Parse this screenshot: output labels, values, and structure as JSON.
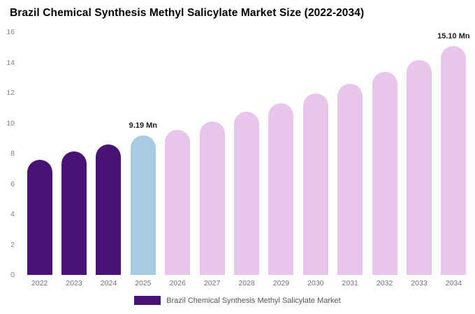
{
  "chart_data": {
    "type": "bar",
    "title": "Brazil Chemical Synthesis Methyl Salicylate Market Size (2022-2034)",
    "xlabel": "",
    "ylabel": "",
    "ylim": [
      0,
      16
    ],
    "yticks": [
      0,
      2,
      4,
      6,
      8,
      10,
      12,
      14,
      16
    ],
    "grid": false,
    "categories": [
      "2022",
      "2023",
      "2024",
      "2025",
      "2026",
      "2027",
      "2028",
      "2029",
      "2030",
      "2031",
      "2032",
      "2033",
      "2034"
    ],
    "values": [
      7.6,
      8.15,
      8.6,
      9.19,
      9.56,
      10.1,
      10.75,
      11.3,
      11.95,
      12.6,
      13.4,
      14.15,
      15.1
    ],
    "data_labels": [
      null,
      null,
      null,
      "9.19 Mn",
      null,
      null,
      null,
      null,
      null,
      null,
      null,
      null,
      "15.10 Mn"
    ],
    "bar_colors": [
      "#4a1277",
      "#4a1277",
      "#4a1277",
      "#a7cbe3",
      "#e8c5eb",
      "#e8c5eb",
      "#e8c5eb",
      "#e8c5eb",
      "#e8c5eb",
      "#e8c5eb",
      "#e8c5eb",
      "#e8c5eb",
      "#e8c5eb"
    ],
    "colors": {
      "historical": "#4a1277",
      "base_year": "#a7cbe3",
      "forecast": "#e8c5eb"
    },
    "legend": [
      {
        "label": "Brazil Chemical Synthesis Methyl Salicylate Market",
        "color": "#4a1277"
      }
    ],
    "legend_position": "bottom"
  }
}
